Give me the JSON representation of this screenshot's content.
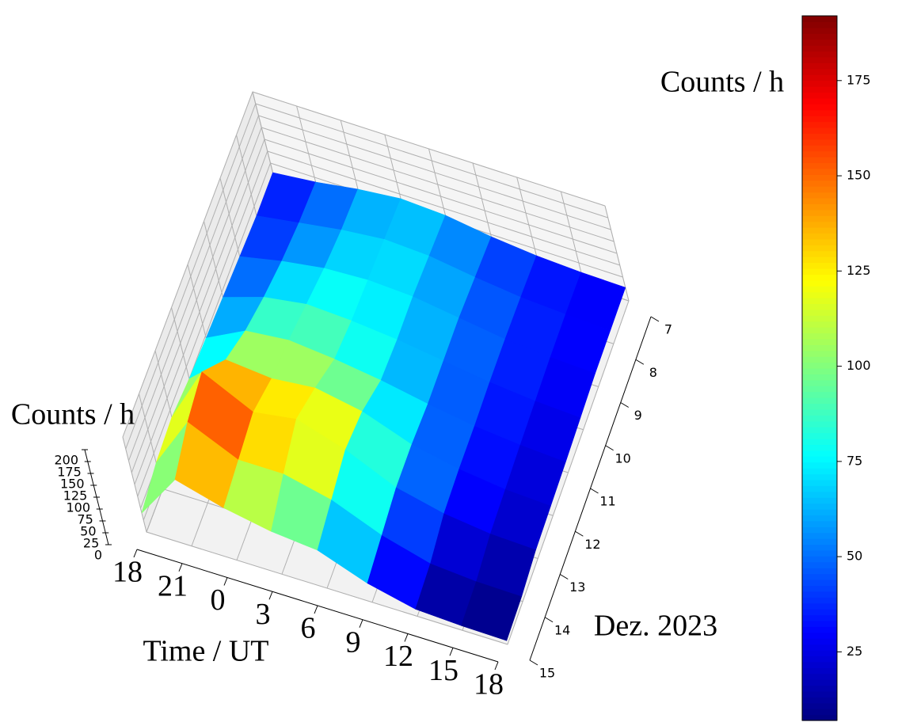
{
  "chart_data": {
    "type": "surface3d",
    "x_label": "Time / UT",
    "y_label": "Dez. 2023",
    "z_label": "Counts / h",
    "colorbar_label": "Counts / h",
    "x": [
      0,
      3,
      6,
      9,
      12,
      15,
      18,
      21,
      24
    ],
    "y": [
      7,
      8,
      9,
      10,
      11,
      12,
      13,
      14,
      15
    ],
    "z": [
      [
        30,
        40,
        55,
        65,
        60,
        45,
        35,
        30,
        28
      ],
      [
        30,
        45,
        60,
        70,
        65,
        50,
        38,
        32,
        28
      ],
      [
        35,
        55,
        70,
        75,
        70,
        55,
        40,
        32,
        28
      ],
      [
        40,
        70,
        85,
        80,
        70,
        55,
        40,
        30,
        25
      ],
      [
        45,
        90,
        100,
        90,
        75,
        55,
        38,
        28,
        22
      ],
      [
        50,
        120,
        110,
        120,
        100,
        60,
        38,
        25,
        20
      ],
      [
        60,
        185,
        130,
        145,
        110,
        60,
        35,
        22,
        18
      ],
      [
        55,
        170,
        120,
        120,
        95,
        50,
        20,
        12,
        10
      ],
      [
        40,
        140,
        110,
        90,
        80,
        40,
        15,
        10,
        8
      ]
    ],
    "xlim": [
      0,
      24
    ],
    "ylim": [
      7,
      15
    ],
    "zlim": [
      0,
      200
    ],
    "xticks": [
      {
        "value": 0,
        "label": "18"
      },
      {
        "value": 3,
        "label": "21"
      },
      {
        "value": 6,
        "label": "0"
      },
      {
        "value": 9,
        "label": "3"
      },
      {
        "value": 12,
        "label": "6"
      },
      {
        "value": 15,
        "label": "9"
      },
      {
        "value": 18,
        "label": "12"
      },
      {
        "value": 21,
        "label": "15"
      },
      {
        "value": 24,
        "label": "18"
      }
    ],
    "yticks": [
      7,
      8,
      9,
      10,
      11,
      12,
      13,
      14,
      15
    ],
    "zticks": [
      0,
      25,
      50,
      75,
      100,
      125,
      150,
      175,
      200
    ],
    "colorbar_ticks": [
      25,
      50,
      75,
      100,
      125,
      150,
      175
    ],
    "clim": [
      7,
      192
    ],
    "colormap": "jet",
    "grid": true
  }
}
